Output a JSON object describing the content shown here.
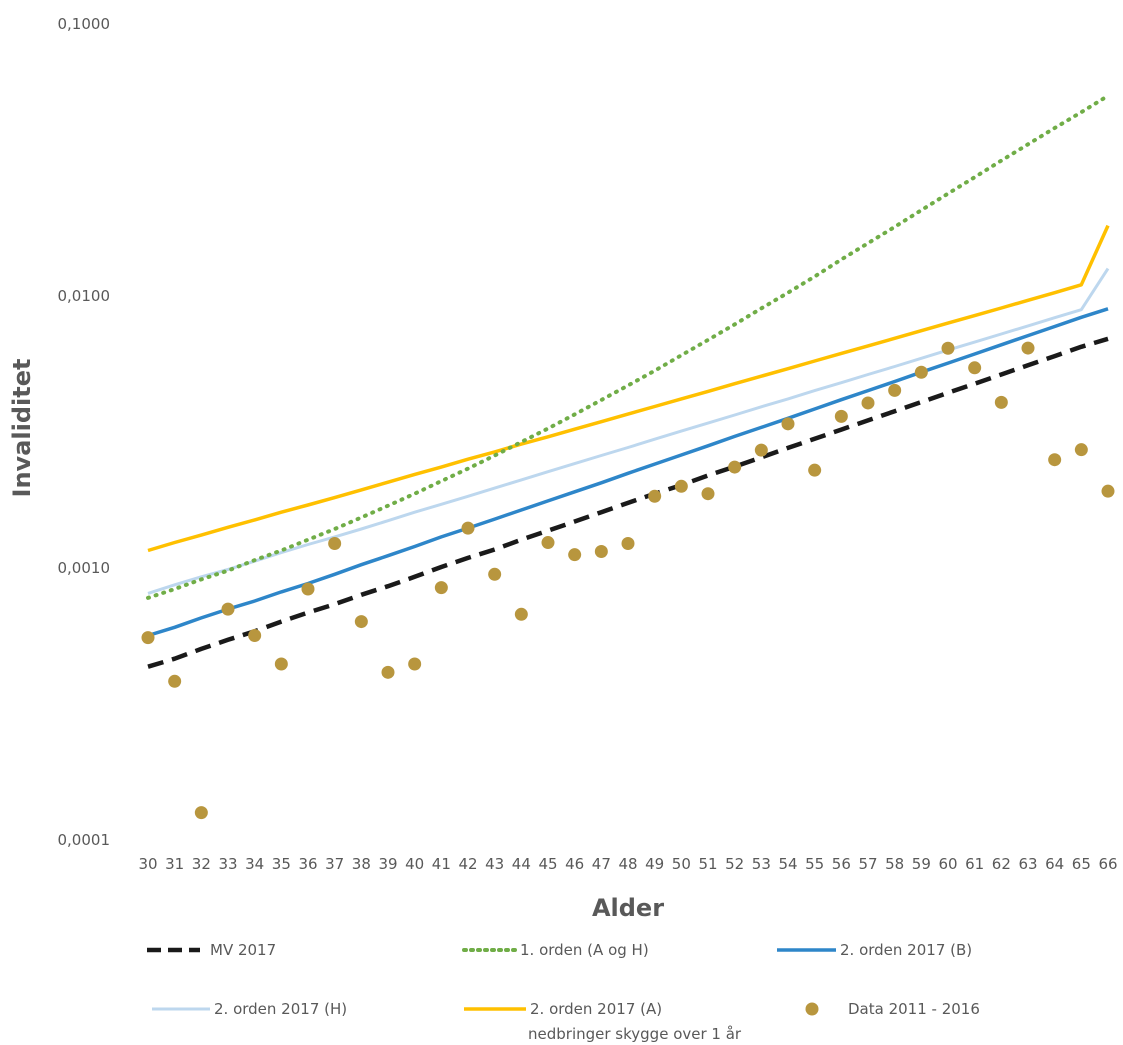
{
  "chart_data": {
    "type": "line",
    "title": "",
    "xlabel": "Alder",
    "ylabel": "Invaliditet",
    "y_scale": "log",
    "ylim": [
      0.0001,
      0.1
    ],
    "y_ticks": [
      "0,0001",
      "0,0010",
      "0,0100",
      "0,1000"
    ],
    "x": [
      30,
      31,
      32,
      33,
      34,
      35,
      36,
      37,
      38,
      39,
      40,
      41,
      42,
      43,
      44,
      45,
      46,
      47,
      48,
      49,
      50,
      51,
      52,
      53,
      54,
      55,
      56,
      57,
      58,
      59,
      60,
      61,
      62,
      63,
      64,
      65,
      66
    ],
    "grid": false,
    "legend_position": "bottom",
    "series": [
      {
        "name": "MV 2017",
        "style": "dashed",
        "color": "#1a1a1a",
        "values": [
          0.00043,
          0.00046,
          0.0005,
          0.00054,
          0.00058,
          0.00063,
          0.00068,
          0.00073,
          0.00079,
          0.00085,
          0.00092,
          0.001,
          0.00108,
          0.00116,
          0.00126,
          0.00136,
          0.00147,
          0.00159,
          0.00172,
          0.00186,
          0.002,
          0.00217,
          0.00234,
          0.00253,
          0.00274,
          0.00296,
          0.0032,
          0.00346,
          0.00374,
          0.00404,
          0.00437,
          0.00472,
          0.0051,
          0.00552,
          0.00596,
          0.00645,
          0.0069
        ]
      },
      {
        "name": "1. orden (A og H)",
        "style": "dotted",
        "color": "#70ad47",
        "values": [
          0.00077,
          0.00083,
          0.0009,
          0.00097,
          0.00106,
          0.00115,
          0.00126,
          0.00138,
          0.00152,
          0.00168,
          0.00186,
          0.00207,
          0.0023,
          0.00257,
          0.00288,
          0.00323,
          0.00364,
          0.00411,
          0.00465,
          0.00527,
          0.006,
          0.00684,
          0.0078,
          0.00893,
          0.0102,
          0.0117,
          0.0135,
          0.0155,
          0.0178,
          0.0205,
          0.0236,
          0.0271,
          0.0312,
          0.0358,
          0.0411,
          0.047,
          0.054
        ]
      },
      {
        "name": "2. orden 2017 (B)",
        "style": "solid",
        "color": "#2e86c9",
        "values": [
          0.00056,
          0.0006,
          0.00065,
          0.0007,
          0.00075,
          0.00081,
          0.00087,
          0.00094,
          0.00102,
          0.0011,
          0.00119,
          0.00129,
          0.00139,
          0.0015,
          0.00162,
          0.00175,
          0.00189,
          0.00204,
          0.00221,
          0.00239,
          0.00258,
          0.00279,
          0.00302,
          0.00326,
          0.00352,
          0.00381,
          0.00412,
          0.00445,
          0.00481,
          0.0052,
          0.00562,
          0.00607,
          0.00656,
          0.00709,
          0.00766,
          0.00828,
          0.0089
        ]
      },
      {
        "name": "2. orden 2017 (H)",
        "style": "solid",
        "color": "#bdd7ee",
        "values": [
          0.0008,
          0.00086,
          0.00092,
          0.00098,
          0.00105,
          0.00113,
          0.00121,
          0.00129,
          0.00138,
          0.00148,
          0.00159,
          0.0017,
          0.00182,
          0.00195,
          0.00209,
          0.00224,
          0.0024,
          0.00257,
          0.00275,
          0.00295,
          0.00316,
          0.00338,
          0.00362,
          0.00388,
          0.00415,
          0.00445,
          0.00476,
          0.0051,
          0.00546,
          0.00585,
          0.00627,
          0.00671,
          0.00719,
          0.0077,
          0.00825,
          0.00883,
          0.0125
        ]
      },
      {
        "name": "2. orden 2017 (A)",
        "style": "solid",
        "color": "#ffc000",
        "note": "nedbringer skygge over 1 år",
        "values": [
          0.00115,
          0.00123,
          0.00131,
          0.0014,
          0.00149,
          0.00159,
          0.00169,
          0.0018,
          0.00192,
          0.00205,
          0.00219,
          0.00233,
          0.00249,
          0.00265,
          0.00283,
          0.00301,
          0.00321,
          0.00342,
          0.00365,
          0.00389,
          0.00415,
          0.00442,
          0.00472,
          0.00503,
          0.00536,
          0.00572,
          0.0061,
          0.0065,
          0.00693,
          0.00739,
          0.00788,
          0.0084,
          0.00896,
          0.00956,
          0.0102,
          0.0109,
          0.018
        ]
      },
      {
        "name": "Data 2011 - 2016",
        "style": "markers",
        "color": "#b8963e",
        "values": [
          0.00055,
          0.00038,
          0.000125,
          0.0007,
          0.00056,
          0.00044,
          0.00083,
          0.00122,
          0.00063,
          0.00041,
          0.00044,
          0.00084,
          0.00139,
          0.00094,
          0.00067,
          0.00123,
          0.00111,
          0.00114,
          0.00122,
          0.00182,
          0.00198,
          0.00186,
          0.00233,
          0.00269,
          0.00336,
          0.00227,
          0.00358,
          0.00401,
          0.00446,
          0.0052,
          0.00637,
          0.0054,
          0.00403,
          0.00638,
          0.00248,
          0.0027,
          0.0019
        ]
      }
    ]
  }
}
